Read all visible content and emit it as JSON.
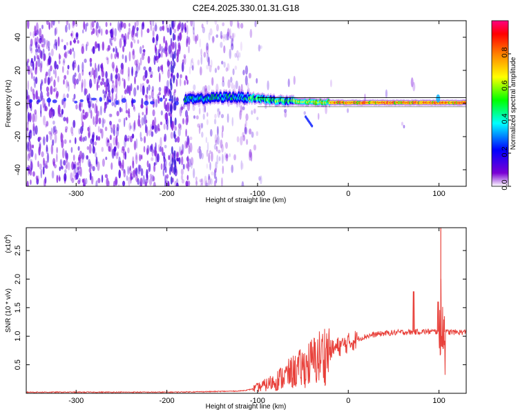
{
  "title": "C2E4.2025.330.01.31.G18",
  "chart_data": [
    {
      "type": "heatmap",
      "xlabel": "Height of straight line (km)",
      "ylabel": "Frequency (Hz)",
      "xlim": [
        -355,
        130
      ],
      "ylim": [
        -50,
        50
      ],
      "xticks": [
        -300,
        -200,
        -100,
        0,
        100
      ],
      "yticks": [
        -40,
        -20,
        0,
        20,
        40
      ],
      "colorbar": {
        "label": "Normalized spectral amplitude",
        "range": [
          0,
          1
        ],
        "ticks": [
          0.0,
          0.2,
          0.4,
          0.6,
          0.8
        ],
        "tick_labels": [
          "0.0",
          "0.2",
          "0.4",
          "0.6",
          "0.8"
        ],
        "colormap": [
          "#ffffff",
          "#7b00d4",
          "#0000ff",
          "#00ffff",
          "#00ff00",
          "#ffff00",
          "#ff8000",
          "#ff0000",
          "#ff0080"
        ]
      },
      "ridge": [
        {
          "x": -170,
          "f": 2.5
        },
        {
          "x": -150,
          "f": 3.5
        },
        {
          "x": -130,
          "f": 4
        },
        {
          "x": -110,
          "f": 3.5
        },
        {
          "x": -90,
          "f": 2.5
        },
        {
          "x": -70,
          "f": 1.5
        },
        {
          "x": -50,
          "f": 1
        },
        {
          "x": -30,
          "f": 0.8
        },
        {
          "x": 0,
          "f": 0.5
        },
        {
          "x": 50,
          "f": 0.5
        },
        {
          "x": 100,
          "f": 0.5
        },
        {
          "x": 130,
          "f": 0.5
        }
      ]
    },
    {
      "type": "line",
      "xlabel": "Height of straight line (km)",
      "ylabel": "SNR (10 * v/v)",
      "y_multiplier_label": "(x10",
      "y_multiplier_exp": "4",
      "xlim": [
        -355,
        130
      ],
      "ylim": [
        0,
        2.9
      ],
      "xticks": [
        -300,
        -200,
        -100,
        0,
        100
      ],
      "yticks": [
        0.5,
        1.0,
        1.5,
        2.0,
        2.5
      ],
      "ytick_labels": [
        "0.5",
        "1.0",
        "1.5",
        "2.0",
        "2.5"
      ],
      "color": "#e8403a",
      "series": [
        {
          "x": [
            -355,
            -300,
            -250,
            -200,
            -150,
            -120,
            -110,
            -100,
            -90,
            -80,
            -70,
            -60,
            -50,
            -40,
            -30,
            -20,
            -10,
            0,
            10,
            20,
            30,
            40,
            50,
            60,
            70,
            80,
            90,
            100,
            110,
            120,
            130
          ],
          "y": [
            0.02,
            0.02,
            0.02,
            0.02,
            0.03,
            0.04,
            0.06,
            0.1,
            0.15,
            0.22,
            0.3,
            0.38,
            0.45,
            0.55,
            0.65,
            0.75,
            0.82,
            0.88,
            0.95,
            1.0,
            1.03,
            1.05,
            1.06,
            1.07,
            1.07,
            1.08,
            1.08,
            1.08,
            1.07,
            1.07,
            1.07
          ]
        }
      ],
      "spikes": [
        {
          "x": 72,
          "y": 1.78
        },
        {
          "x": 99,
          "y": 1.6
        },
        {
          "x": 102,
          "y": 2.9
        },
        {
          "x": 106,
          "y": 1.35
        }
      ]
    }
  ]
}
